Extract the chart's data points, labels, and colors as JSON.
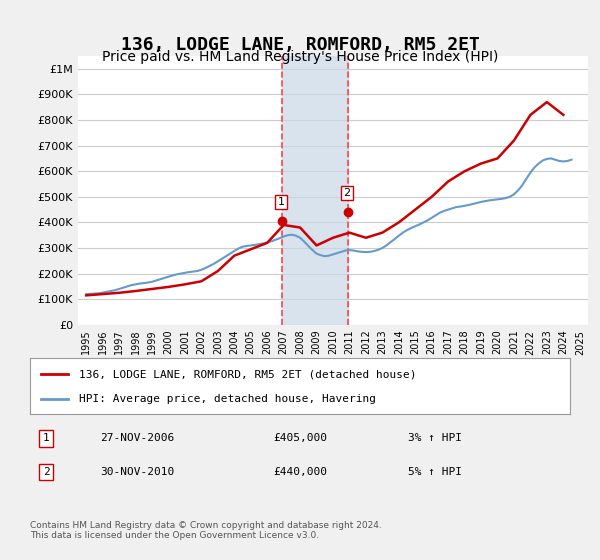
{
  "title": "136, LODGE LANE, ROMFORD, RM5 2ET",
  "subtitle": "Price paid vs. HM Land Registry's House Price Index (HPI)",
  "ylabel": "",
  "xlabel": "",
  "title_fontsize": 13,
  "subtitle_fontsize": 10,
  "ylim": [
    0,
    1050000
  ],
  "yticks": [
    0,
    100000,
    200000,
    300000,
    400000,
    500000,
    600000,
    700000,
    800000,
    900000,
    1000000
  ],
  "ytick_labels": [
    "£0",
    "£100K",
    "£200K",
    "£300K",
    "£400K",
    "£500K",
    "£600K",
    "£700K",
    "£800K",
    "£900K",
    "£1M"
  ],
  "xlim_start": 1994.5,
  "xlim_end": 2025.5,
  "xtick_years": [
    1995,
    1996,
    1997,
    1998,
    1999,
    2000,
    2001,
    2002,
    2003,
    2004,
    2005,
    2006,
    2007,
    2008,
    2009,
    2010,
    2011,
    2012,
    2013,
    2014,
    2015,
    2016,
    2017,
    2018,
    2019,
    2020,
    2021,
    2022,
    2023,
    2024,
    2025
  ],
  "bg_color": "#f0f0f0",
  "plot_bg_color": "#ffffff",
  "grid_color": "#cccccc",
  "red_line_color": "#cc0000",
  "blue_line_color": "#6699cc",
  "sale1_x": 2006.9,
  "sale1_y": 405000,
  "sale1_label": "1",
  "sale1_vline_color": "#ff4444",
  "sale2_x": 2010.9,
  "sale2_y": 440000,
  "sale2_label": "2",
  "sale2_vline_color": "#ff4444",
  "shade_x1": 2006.9,
  "shade_x2": 2010.9,
  "shade_color": "#c8d8e8",
  "legend_label1": "136, LODGE LANE, ROMFORD, RM5 2ET (detached house)",
  "legend_label2": "HPI: Average price, detached house, Havering",
  "annotation1_num": "1",
  "annotation1_date": "27-NOV-2006",
  "annotation1_price": "£405,000",
  "annotation1_hpi": "3% ↑ HPI",
  "annotation2_num": "2",
  "annotation2_date": "30-NOV-2010",
  "annotation2_price": "£440,000",
  "annotation2_hpi": "5% ↑ HPI",
  "footnote": "Contains HM Land Registry data © Crown copyright and database right 2024.\nThis data is licensed under the Open Government Licence v3.0.",
  "hpi_years": [
    1995,
    1995.25,
    1995.5,
    1995.75,
    1996,
    1996.25,
    1996.5,
    1996.75,
    1997,
    1997.25,
    1997.5,
    1997.75,
    1998,
    1998.25,
    1998.5,
    1998.75,
    1999,
    1999.25,
    1999.5,
    1999.75,
    2000,
    2000.25,
    2000.5,
    2000.75,
    2001,
    2001.25,
    2001.5,
    2001.75,
    2002,
    2002.25,
    2002.5,
    2002.75,
    2003,
    2003.25,
    2003.5,
    2003.75,
    2004,
    2004.25,
    2004.5,
    2004.75,
    2005,
    2005.25,
    2005.5,
    2005.75,
    2006,
    2006.25,
    2006.5,
    2006.75,
    2007,
    2007.25,
    2007.5,
    2007.75,
    2008,
    2008.25,
    2008.5,
    2008.75,
    2009,
    2009.25,
    2009.5,
    2009.75,
    2010,
    2010.25,
    2010.5,
    2010.75,
    2011,
    2011.25,
    2011.5,
    2011.75,
    2012,
    2012.25,
    2012.5,
    2012.75,
    2013,
    2013.25,
    2013.5,
    2013.75,
    2014,
    2014.25,
    2014.5,
    2014.75,
    2015,
    2015.25,
    2015.5,
    2015.75,
    2016,
    2016.25,
    2016.5,
    2016.75,
    2017,
    2017.25,
    2017.5,
    2017.75,
    2018,
    2018.25,
    2018.5,
    2018.75,
    2019,
    2019.25,
    2019.5,
    2019.75,
    2020,
    2020.25,
    2020.5,
    2020.75,
    2021,
    2021.25,
    2021.5,
    2021.75,
    2022,
    2022.25,
    2022.5,
    2022.75,
    2023,
    2023.25,
    2023.5,
    2023.75,
    2024,
    2024.25,
    2024.5
  ],
  "hpi_values": [
    120000,
    121000,
    122000,
    123000,
    126000,
    129000,
    132000,
    135000,
    140000,
    145000,
    150000,
    155000,
    158000,
    161000,
    163000,
    165000,
    168000,
    173000,
    178000,
    183000,
    188000,
    193000,
    197000,
    200000,
    203000,
    206000,
    208000,
    210000,
    215000,
    222000,
    230000,
    238000,
    248000,
    258000,
    268000,
    278000,
    288000,
    298000,
    305000,
    308000,
    310000,
    312000,
    315000,
    318000,
    322000,
    326000,
    332000,
    338000,
    345000,
    350000,
    352000,
    348000,
    340000,
    325000,
    308000,
    292000,
    278000,
    272000,
    268000,
    270000,
    275000,
    280000,
    285000,
    290000,
    292000,
    290000,
    287000,
    285000,
    284000,
    285000,
    288000,
    293000,
    300000,
    310000,
    323000,
    335000,
    348000,
    360000,
    370000,
    378000,
    385000,
    392000,
    400000,
    408000,
    418000,
    428000,
    438000,
    445000,
    450000,
    455000,
    460000,
    462000,
    465000,
    468000,
    472000,
    476000,
    480000,
    483000,
    486000,
    488000,
    490000,
    492000,
    495000,
    500000,
    510000,
    525000,
    545000,
    570000,
    595000,
    615000,
    630000,
    642000,
    648000,
    650000,
    645000,
    640000,
    638000,
    640000,
    645000
  ],
  "red_years": [
    1995,
    1996,
    1997,
    1998,
    1999,
    2000,
    2001,
    2002,
    2003,
    2004,
    2005,
    2006,
    2007,
    2008,
    2009,
    2010,
    2011,
    2012,
    2013,
    2014,
    2015,
    2016,
    2017,
    2018,
    2019,
    2020,
    2021,
    2022,
    2023,
    2024
  ],
  "red_values": [
    115000,
    120000,
    125000,
    132000,
    140000,
    148000,
    158000,
    170000,
    210000,
    270000,
    295000,
    320000,
    390000,
    380000,
    310000,
    340000,
    360000,
    340000,
    360000,
    400000,
    450000,
    500000,
    560000,
    600000,
    630000,
    650000,
    720000,
    820000,
    870000,
    820000
  ]
}
